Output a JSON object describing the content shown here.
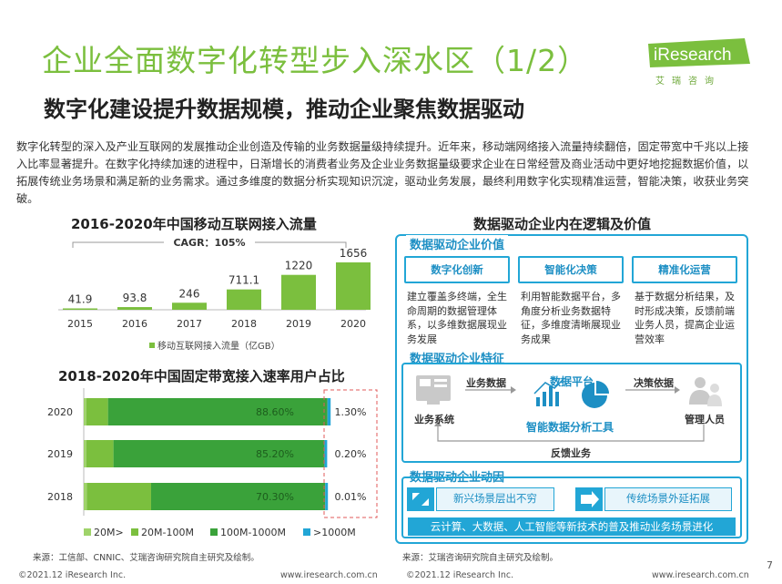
{
  "header": {
    "title": "企业全面数字化转型步入深水区（1/2）",
    "subtitle": "数字化建设提升数据规模，推动企业聚焦数据驱动",
    "logo_text": "iResearch",
    "logo_tag": "艾瑞咨询"
  },
  "intro": "数字化转型的深入及产业互联网的发展推动企业创造及传输的业务数据量级持续提升。近年来，移动端网络接入流量持续翻倍，固定带宽中千兆以上接入比率显著提升。在数字化持续加速的进程中，日渐增长的消费者业务及企业业务数据量级要求企业在日常经营及商业活动中更好地挖掘数据价值，以拓展传统业务场景和满足新的业务需求。通过多维度的数据分析实现知识沉淀，驱动业务发展，最终利用数字化实现精准运营，智能决策，收获业务突破。",
  "colors": {
    "green": "#7bbf3e",
    "blue": "#22a6d6",
    "green_light": "#9fd36a",
    "green_mid": "#5fb53a",
    "green_dark": "#3aa23a"
  },
  "chart_data": [
    {
      "type": "bar",
      "title": "2016-2020年中国移动互联网接入流量",
      "annotation": "CAGR：105%",
      "categories": [
        "2015",
        "2016",
        "2017",
        "2018",
        "2019",
        "2020"
      ],
      "values": [
        41.9,
        93.8,
        246,
        711.1,
        1220,
        1656
      ],
      "value_labels": [
        "41.9",
        "93.8",
        "246",
        "711.1",
        "1220",
        "1656"
      ],
      "legend": "移动互联网接入流量（亿GB）",
      "ylim": [
        0,
        1800
      ]
    },
    {
      "type": "bar",
      "orientation": "horizontal-stacked-100",
      "title": "2018-2020年中国固定带宽接入速率用户占比",
      "categories": [
        "2020",
        "2019",
        "2018"
      ],
      "series": [
        {
          "name": "20M>",
          "values": [
            1.0,
            1.0,
            1.2
          ]
        },
        {
          "name": "20M-100M",
          "values": [
            8.8,
            11.0,
            26.0
          ]
        },
        {
          "name": "100M-1000M",
          "values": [
            88.6,
            85.2,
            70.3
          ]
        },
        {
          "name": ">1000M",
          "values": [
            1.3,
            0.2,
            0.01
          ]
        }
      ],
      "value_labels": {
        "inner": [
          "88.60%",
          "85.20%",
          "70.30%"
        ],
        "outer": [
          "1.30%",
          "0.20%",
          "0.01%"
        ]
      }
    }
  ],
  "right": {
    "title": "数据驱动企业内在逻辑及价值",
    "value_section": {
      "label": "数据驱动企业价值",
      "cards": [
        {
          "head": "数字化创新",
          "body": "建立覆盖多终端，全生命周期的数据管理体系，以多维数据展现业务发展"
        },
        {
          "head": "智能化决策",
          "body": "利用智能数据平台，多角度分析业务数据特征，多维度清晰展现业务成果"
        },
        {
          "head": "精准化运营",
          "body": "基于数据分析结果，及时形成决策，反馈前端业务人员，提高企业运营效率"
        }
      ]
    },
    "feature_section": {
      "label": "数据驱动企业特征",
      "business_data": "业务数据",
      "data_platform": "数据平台",
      "decision_basis": "决策依据",
      "business_system": "业务系统",
      "analysis_tool": "智能数据分析工具",
      "managers": "管理人员",
      "feedback": "反馈业务"
    },
    "driver_section": {
      "label": "数据驱动企业动因",
      "new_scene": "新兴场景层出不穷",
      "old_scene": "传统场景外延拓展",
      "banner": "云计算、大数据、人工智能等新技术的普及推动业务场景进化"
    }
  },
  "footer": {
    "left_source": "来源：工信部、CNNIC、艾瑞咨询研究院自主研究及绘制。",
    "right_source": "来源：艾瑞咨询研究院自主研究及绘制。",
    "copyright_left": "©2021.12 iResearch Inc.",
    "url_left": "www.iresearch.com.cn",
    "copyright_right": "©2021.12 iResearch Inc.",
    "url_right": "www.iresearch.com.cn",
    "page_number": "7"
  }
}
